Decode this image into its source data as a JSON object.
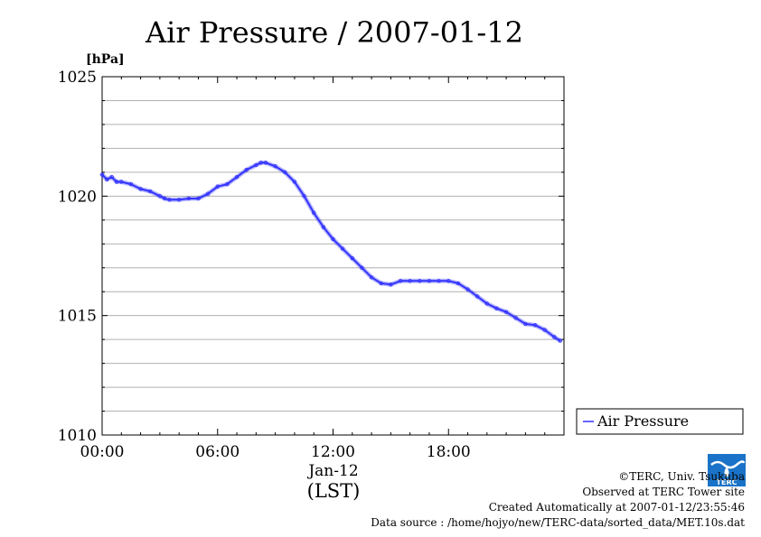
{
  "chart_data": {
    "type": "line",
    "title": "Air Pressure / 2007-01-12",
    "ylabel": "[hPa]",
    "xlabel": "(LST)",
    "x_date_label": "Jan-12",
    "ylim": [
      1010,
      1025
    ],
    "xlim_hours": [
      0,
      24
    ],
    "y_ticks": [
      "1010",
      "1015",
      "1020",
      "1025"
    ],
    "x_ticks": [
      "00:00",
      "06:00",
      "12:00",
      "18:00"
    ],
    "grid": true,
    "legend_position": "right",
    "series": [
      {
        "name": "Air Pressure",
        "color": "#3333ff",
        "x_hours": [
          0,
          0.25,
          0.5,
          0.75,
          1,
          1.5,
          2,
          2.5,
          3,
          3.25,
          3.5,
          4,
          4.5,
          5,
          5.5,
          6,
          6.5,
          7,
          7.5,
          8,
          8.25,
          8.5,
          9,
          9.5,
          10,
          10.5,
          11,
          11.5,
          12,
          12.5,
          13,
          13.5,
          14,
          14.5,
          15,
          15.5,
          16,
          16.5,
          17,
          17.5,
          18,
          18.5,
          19,
          19.5,
          20,
          20.5,
          21,
          21.5,
          22,
          22.5,
          23,
          23.5,
          23.8
        ],
        "values": [
          1020.9,
          1020.7,
          1020.8,
          1020.6,
          1020.6,
          1020.5,
          1020.3,
          1020.2,
          1020.0,
          1019.9,
          1019.85,
          1019.85,
          1019.9,
          1019.9,
          1020.1,
          1020.4,
          1020.5,
          1020.8,
          1021.1,
          1021.3,
          1021.4,
          1021.4,
          1021.25,
          1021.0,
          1020.6,
          1020.0,
          1019.3,
          1018.7,
          1018.2,
          1017.8,
          1017.4,
          1017.0,
          1016.6,
          1016.35,
          1016.3,
          1016.45,
          1016.45,
          1016.45,
          1016.45,
          1016.45,
          1016.45,
          1016.35,
          1016.1,
          1015.8,
          1015.5,
          1015.3,
          1015.15,
          1014.9,
          1014.65,
          1014.6,
          1014.4,
          1014.1,
          1013.95
        ]
      }
    ]
  },
  "credits": {
    "copyright": "©TERC, Univ. Tsukuba",
    "observed": "Observed at TERC Tower site",
    "created": "Created Automatically at 2007-01-12/23:55:46",
    "source": "Data source : /home/hojyo/new/TERC-data/sorted_data/MET.10s.dat"
  },
  "logo": {
    "text": "TERC",
    "color": "#1a73c8"
  }
}
